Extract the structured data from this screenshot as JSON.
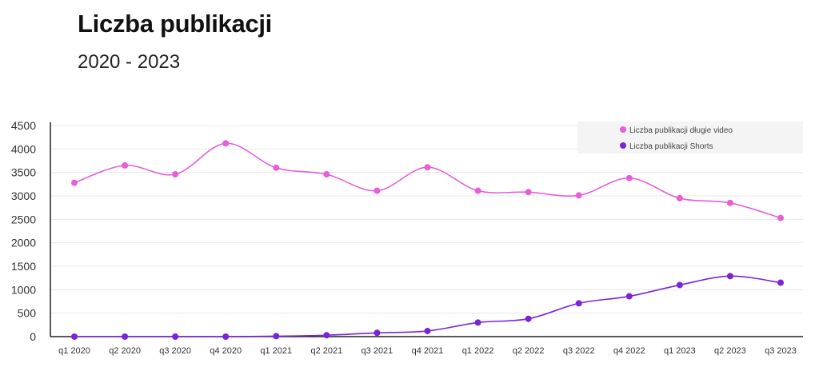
{
  "title": "Liczba publikacji",
  "subtitle": "2020 - 2023",
  "colors": {
    "long_video": "#e65fd9",
    "shorts": "#7a24d9",
    "grid": "#e8e8e8",
    "axis": "#222222",
    "legend_bg": "#f4f4f4"
  },
  "chart_data": {
    "type": "line",
    "title": "Liczba publikacji",
    "subtitle": "2020 - 2023",
    "xlabel": "",
    "ylabel": "",
    "ylim": [
      0,
      4500
    ],
    "yticks": [
      0,
      500,
      1000,
      1500,
      2000,
      2500,
      3000,
      3500,
      4000,
      4500
    ],
    "grid": true,
    "legend_position": "top-right",
    "categories": [
      "q1 2020",
      "q2 2020",
      "q3 2020",
      "q4 2020",
      "q1 2021",
      "q2 2021",
      "q3 2021",
      "q4 2021",
      "q1 2022",
      "q2 2022",
      "q3 2022",
      "q4 2022",
      "q1 2023",
      "q2 2023",
      "q3 2023"
    ],
    "series": [
      {
        "name": "Liczba publikacji długie video",
        "color": "#e65fd9",
        "values": [
          3280,
          3650,
          3460,
          4120,
          3600,
          3460,
          3110,
          3610,
          3110,
          3080,
          3010,
          3380,
          2950,
          2850,
          2530
        ]
      },
      {
        "name": "Liczba publikacji Shorts",
        "color": "#7a24d9",
        "values": [
          0,
          0,
          0,
          0,
          10,
          30,
          80,
          120,
          300,
          380,
          710,
          860,
          1100,
          1290,
          1150
        ]
      }
    ]
  }
}
